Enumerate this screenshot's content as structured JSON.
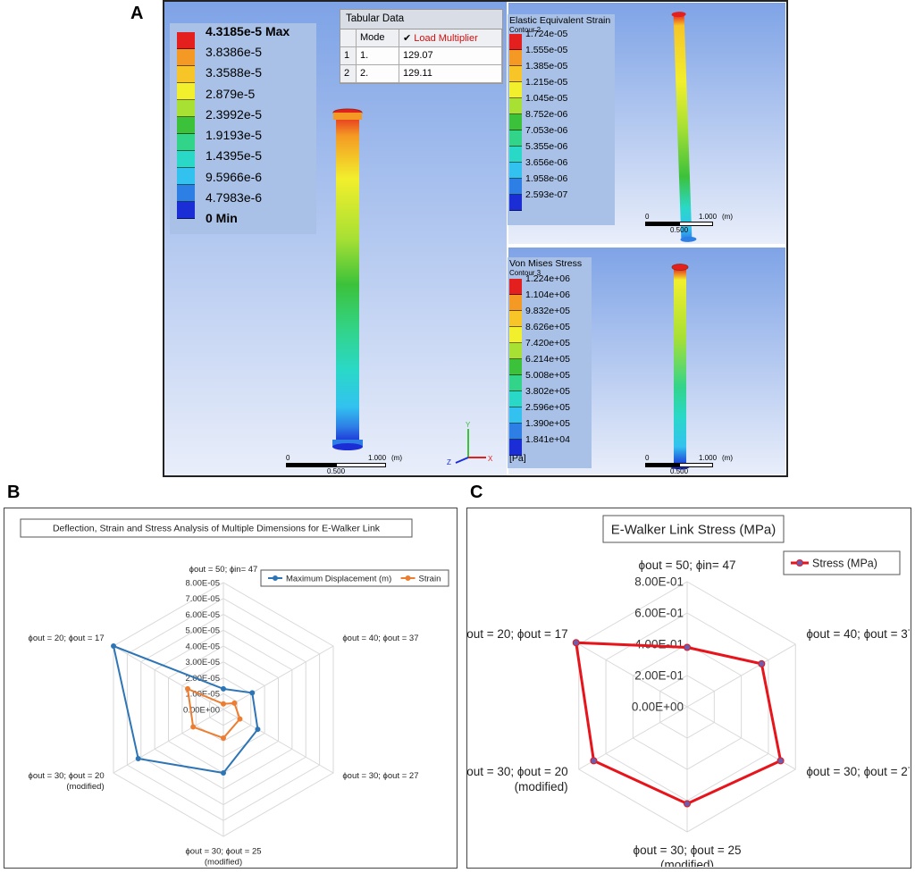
{
  "panel_labels": [
    "A",
    "B",
    "C"
  ],
  "fea": {
    "deformation_legend": {
      "max_label": "4.3185e-5 Max",
      "values": [
        "3.8386e-5",
        "3.3588e-5",
        "2.879e-5",
        "2.3992e-5",
        "1.9193e-5",
        "1.4395e-5",
        "9.5966e-6",
        "4.7983e-6"
      ],
      "min_label": "0 Min"
    },
    "tabular": {
      "title": "Tabular Data",
      "col_mode": "Mode",
      "col_multiplier": "Load Multiplier",
      "rows": [
        {
          "idx": "1",
          "mode": "1.",
          "value": "129.07"
        },
        {
          "idx": "2",
          "mode": "2.",
          "value": "129.11"
        }
      ]
    },
    "strain_legend": {
      "title": "Elastic Equivalent Strain",
      "subtitle": "Contour 2",
      "values": [
        "1.724e-05",
        "1.555e-05",
        "1.385e-05",
        "1.215e-05",
        "1.045e-05",
        "8.752e-06",
        "7.053e-06",
        "5.355e-06",
        "3.656e-06",
        "1.958e-06",
        "2.593e-07"
      ]
    },
    "stress_legend": {
      "title": "Von Mises Stress",
      "subtitle": "Contour 3",
      "values": [
        "1.224e+06",
        "1.104e+06",
        "9.832e+05",
        "8.626e+05",
        "7.420e+05",
        "6.214e+05",
        "5.008e+05",
        "3.802e+05",
        "2.596e+05",
        "1.390e+05",
        "1.841e+04"
      ],
      "unit": "[Pa]"
    },
    "scale": {
      "zero": "0",
      "one": "1.000",
      "unit": "(m)",
      "half": "0.500"
    },
    "colors": [
      "#e4201f",
      "#f49a24",
      "#f7c528",
      "#f2ef2c",
      "#a8e034",
      "#3cc23a",
      "#32d48a",
      "#2ad8c8",
      "#33c2ef",
      "#2d7fe6",
      "#1b2ed6"
    ]
  },
  "chart_data": [
    {
      "type": "radar",
      "title": "Deflection, Strain and Stress Analysis of Multiple Dimensions for E-Walker Link",
      "categories": [
        "ϕout = 50; ϕin= 47",
        "ϕout = 40; ϕout = 37",
        "ϕout = 30; ϕout = 27",
        "ϕout = 30; ϕout = 25|(modified)",
        "ϕout = 30; ϕout = 20|(modified)",
        "ϕout = 20; ϕout = 17"
      ],
      "ticks": [
        "0.00E+00",
        "1.00E-05",
        "2.00E-05",
        "3.00E-05",
        "4.00E-05",
        "5.00E-05",
        "6.00E-05",
        "7.00E-05",
        "8.00E-05"
      ],
      "rmax": 8e-05,
      "legend_position": "top-right",
      "series": [
        {
          "name": "Maximum Displacement (m)",
          "color": "#2e75b6",
          "values": [
            1.3e-05,
            2.1e-05,
            2.5e-05,
            4e-05,
            6.2e-05,
            8e-05
          ]
        },
        {
          "name": "Strain",
          "color": "#ed7d31",
          "values": [
            3.5e-06,
            8e-06,
            1.2e-05,
            1.8e-05,
            2.2e-05,
            2.6e-05
          ]
        }
      ]
    },
    {
      "type": "radar",
      "title": "E-Walker Link Stress (MPa)",
      "categories": [
        "ϕout = 50; ϕin= 47",
        "ϕout = 40; ϕout = 37",
        "ϕout = 30; ϕout = 27",
        "ϕout = 30; ϕout = 25|(modified)",
        "ϕout = 30; ϕout = 20|(modified)",
        "ϕout = 20; ϕout = 17"
      ],
      "ticks": [
        "0.00E+00",
        "2.00E-01",
        "4.00E-01",
        "6.00E-01",
        "8.00E-01"
      ],
      "rmax": 0.8,
      "legend_position": "top-right",
      "series": [
        {
          "name": "Stress (MPa)",
          "color": "#e8141b",
          "marker_color": "#6a5fae",
          "values": [
            0.38,
            0.55,
            0.69,
            0.62,
            0.69,
            0.82
          ]
        }
      ]
    }
  ]
}
